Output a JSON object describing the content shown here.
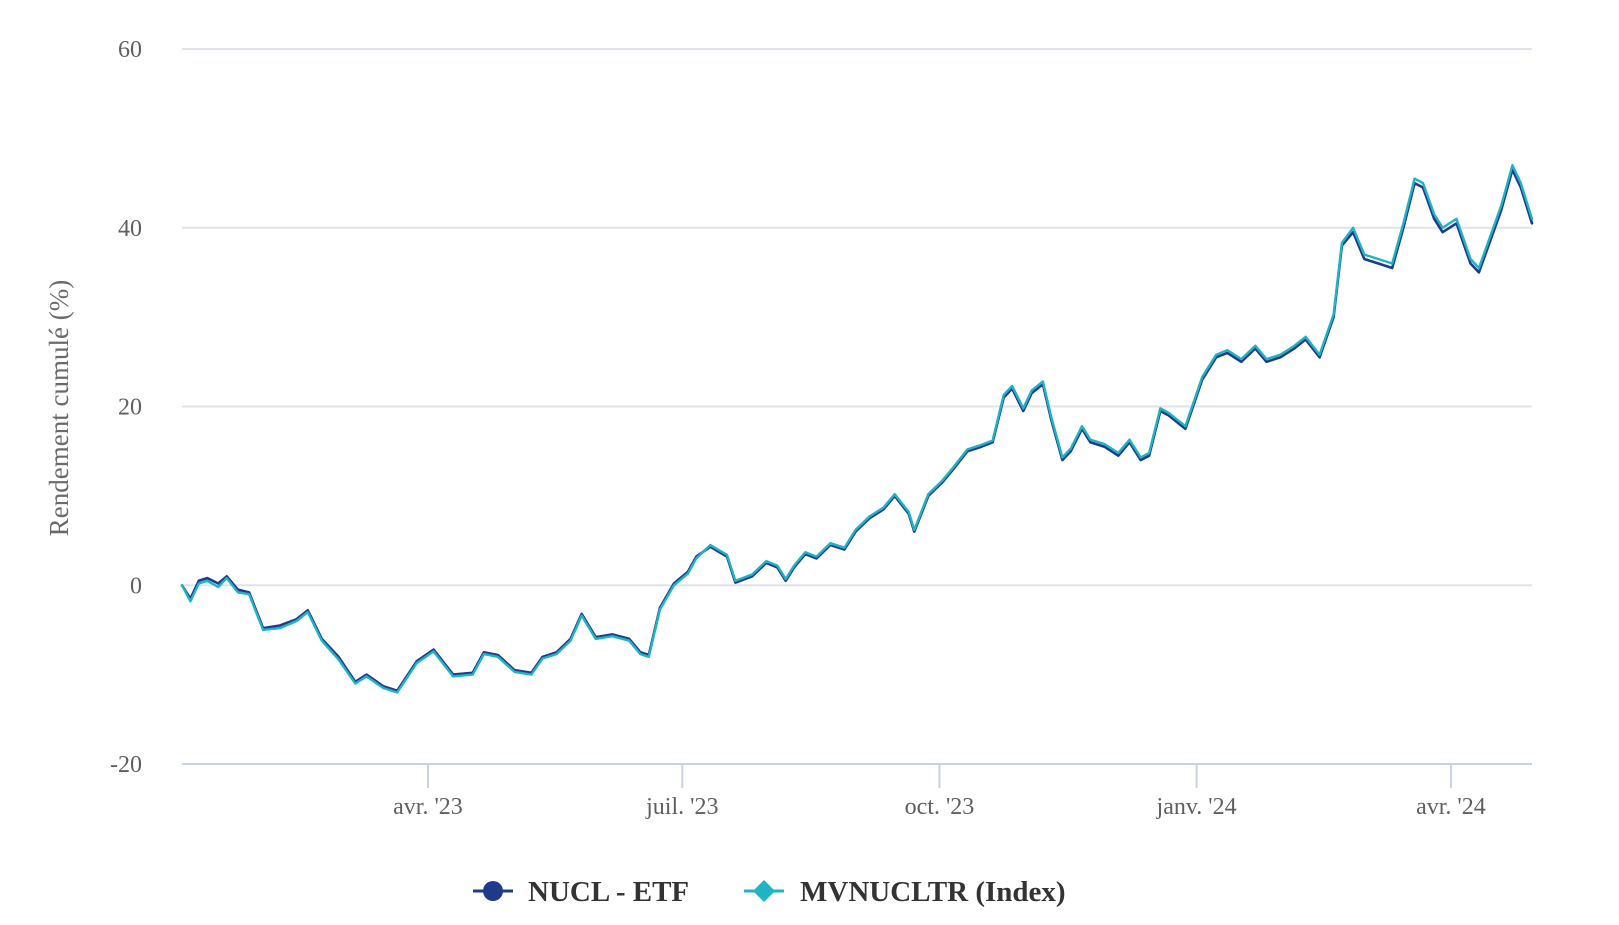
{
  "chart_data": {
    "type": "line",
    "title": "",
    "xlabel": "",
    "ylabel": "Rendement cumulé (%)",
    "ylim": [
      -20,
      60
    ],
    "yticks": [
      -20,
      0,
      20,
      40,
      60
    ],
    "xlim": [
      "2023-01-03",
      "2024-04-30"
    ],
    "xticks": [
      {
        "date": "2023-04-01",
        "label": "avr. '23"
      },
      {
        "date": "2023-07-01",
        "label": "juil. '23"
      },
      {
        "date": "2023-10-01",
        "label": "oct. '23"
      },
      {
        "date": "2024-01-01",
        "label": "janv. '24"
      },
      {
        "date": "2024-04-01",
        "label": "avr. '24"
      }
    ],
    "grid": true,
    "legend_position": "bottom-center",
    "series": [
      {
        "name": "NUCL - ETF",
        "color": "#1f3a8a",
        "marker": "circle",
        "points": [
          [
            "2023-01-03",
            0.0
          ],
          [
            "2023-01-06",
            -1.5
          ],
          [
            "2023-01-09",
            0.5
          ],
          [
            "2023-01-12",
            0.8
          ],
          [
            "2023-01-16",
            0.2
          ],
          [
            "2023-01-19",
            1.0
          ],
          [
            "2023-01-23",
            -0.5
          ],
          [
            "2023-01-27",
            -0.8
          ],
          [
            "2023-02-01",
            -4.8
          ],
          [
            "2023-02-07",
            -4.5
          ],
          [
            "2023-02-13",
            -3.8
          ],
          [
            "2023-02-17",
            -2.8
          ],
          [
            "2023-02-22",
            -6.0
          ],
          [
            "2023-02-28",
            -8.0
          ],
          [
            "2023-03-06",
            -10.8
          ],
          [
            "2023-03-10",
            -10.0
          ],
          [
            "2023-03-16",
            -11.3
          ],
          [
            "2023-03-21",
            -11.8
          ],
          [
            "2023-03-28",
            -8.5
          ],
          [
            "2023-04-03",
            -7.2
          ],
          [
            "2023-04-10",
            -10.0
          ],
          [
            "2023-04-17",
            -9.8
          ],
          [
            "2023-04-21",
            -7.5
          ],
          [
            "2023-04-26",
            -7.8
          ],
          [
            "2023-05-02",
            -9.5
          ],
          [
            "2023-05-08",
            -9.8
          ],
          [
            "2023-05-12",
            -8.0
          ],
          [
            "2023-05-17",
            -7.5
          ],
          [
            "2023-05-22",
            -6.0
          ],
          [
            "2023-05-26",
            -3.2
          ],
          [
            "2023-05-31",
            -5.8
          ],
          [
            "2023-06-06",
            -5.5
          ],
          [
            "2023-06-12",
            -6.0
          ],
          [
            "2023-06-16",
            -7.5
          ],
          [
            "2023-06-19",
            -7.8
          ],
          [
            "2023-06-23",
            -2.5
          ],
          [
            "2023-06-28",
            0.2
          ],
          [
            "2023-07-03",
            1.5
          ],
          [
            "2023-07-06",
            3.2
          ],
          [
            "2023-07-11",
            4.3
          ],
          [
            "2023-07-17",
            3.2
          ],
          [
            "2023-07-20",
            0.3
          ],
          [
            "2023-07-26",
            1.0
          ],
          [
            "2023-07-31",
            2.5
          ],
          [
            "2023-08-04",
            2.0
          ],
          [
            "2023-08-07",
            0.5
          ],
          [
            "2023-08-10",
            2.0
          ],
          [
            "2023-08-14",
            3.5
          ],
          [
            "2023-08-18",
            3.0
          ],
          [
            "2023-08-23",
            4.5
          ],
          [
            "2023-08-28",
            4.0
          ],
          [
            "2023-09-01",
            6.0
          ],
          [
            "2023-09-06",
            7.5
          ],
          [
            "2023-09-11",
            8.5
          ],
          [
            "2023-09-15",
            10.0
          ],
          [
            "2023-09-20",
            8.0
          ],
          [
            "2023-09-22",
            6.0
          ],
          [
            "2023-09-27",
            10.0
          ],
          [
            "2023-10-02",
            11.5
          ],
          [
            "2023-10-06",
            13.0
          ],
          [
            "2023-10-11",
            15.0
          ],
          [
            "2023-10-16",
            15.5
          ],
          [
            "2023-10-20",
            16.0
          ],
          [
            "2023-10-24",
            21.0
          ],
          [
            "2023-10-27",
            22.0
          ],
          [
            "2023-10-31",
            19.5
          ],
          [
            "2023-11-03",
            21.5
          ],
          [
            "2023-11-07",
            22.5
          ],
          [
            "2023-11-10",
            18.5
          ],
          [
            "2023-11-14",
            14.0
          ],
          [
            "2023-11-17",
            15.0
          ],
          [
            "2023-11-21",
            17.5
          ],
          [
            "2023-11-24",
            16.0
          ],
          [
            "2023-11-29",
            15.5
          ],
          [
            "2023-12-04",
            14.5
          ],
          [
            "2023-12-08",
            16.0
          ],
          [
            "2023-12-12",
            14.0
          ],
          [
            "2023-12-15",
            14.5
          ],
          [
            "2023-12-19",
            19.5
          ],
          [
            "2023-12-22",
            19.0
          ],
          [
            "2023-12-28",
            17.5
          ],
          [
            "2024-01-03",
            23.0
          ],
          [
            "2024-01-08",
            25.5
          ],
          [
            "2024-01-12",
            26.0
          ],
          [
            "2024-01-17",
            25.0
          ],
          [
            "2024-01-22",
            26.5
          ],
          [
            "2024-01-26",
            25.0
          ],
          [
            "2024-01-31",
            25.5
          ],
          [
            "2024-02-05",
            26.5
          ],
          [
            "2024-02-09",
            27.5
          ],
          [
            "2024-02-14",
            25.5
          ],
          [
            "2024-02-19",
            30.0
          ],
          [
            "2024-02-22",
            38.0
          ],
          [
            "2024-02-26",
            39.5
          ],
          [
            "2024-03-01",
            36.5
          ],
          [
            "2024-03-06",
            36.0
          ],
          [
            "2024-03-11",
            35.5
          ],
          [
            "2024-03-15",
            40.0
          ],
          [
            "2024-03-19",
            45.0
          ],
          [
            "2024-03-22",
            44.5
          ],
          [
            "2024-03-26",
            41.0
          ],
          [
            "2024-03-29",
            39.5
          ],
          [
            "2024-04-03",
            40.5
          ],
          [
            "2024-04-08",
            36.0
          ],
          [
            "2024-04-11",
            35.0
          ],
          [
            "2024-04-15",
            38.5
          ],
          [
            "2024-04-19",
            42.0
          ],
          [
            "2024-04-23",
            46.5
          ],
          [
            "2024-04-26",
            44.5
          ],
          [
            "2024-04-30",
            40.5
          ]
        ]
      },
      {
        "name": "MVNUCLTR (Index)",
        "color": "#1fb3c4",
        "marker": "diamond",
        "points": [
          [
            "2023-01-03",
            0.0
          ],
          [
            "2023-01-06",
            -1.8
          ],
          [
            "2023-01-09",
            0.2
          ],
          [
            "2023-01-12",
            0.5
          ],
          [
            "2023-01-16",
            -0.2
          ],
          [
            "2023-01-19",
            0.8
          ],
          [
            "2023-01-23",
            -0.8
          ],
          [
            "2023-01-27",
            -1.0
          ],
          [
            "2023-02-01",
            -5.0
          ],
          [
            "2023-02-07",
            -4.8
          ],
          [
            "2023-02-13",
            -4.0
          ],
          [
            "2023-02-17",
            -3.0
          ],
          [
            "2023-02-22",
            -6.2
          ],
          [
            "2023-02-28",
            -8.3
          ],
          [
            "2023-03-06",
            -11.0
          ],
          [
            "2023-03-10",
            -10.2
          ],
          [
            "2023-03-16",
            -11.5
          ],
          [
            "2023-03-21",
            -12.0
          ],
          [
            "2023-03-28",
            -8.7
          ],
          [
            "2023-04-03",
            -7.4
          ],
          [
            "2023-04-10",
            -10.2
          ],
          [
            "2023-04-17",
            -10.0
          ],
          [
            "2023-04-21",
            -7.7
          ],
          [
            "2023-04-26",
            -8.0
          ],
          [
            "2023-05-02",
            -9.7
          ],
          [
            "2023-05-08",
            -10.0
          ],
          [
            "2023-05-12",
            -8.2
          ],
          [
            "2023-05-17",
            -7.7
          ],
          [
            "2023-05-22",
            -6.2
          ],
          [
            "2023-05-26",
            -3.4
          ],
          [
            "2023-05-31",
            -6.0
          ],
          [
            "2023-06-06",
            -5.7
          ],
          [
            "2023-06-12",
            -6.2
          ],
          [
            "2023-06-16",
            -7.7
          ],
          [
            "2023-06-19",
            -8.0
          ],
          [
            "2023-06-23",
            -2.7
          ],
          [
            "2023-06-28",
            0.0
          ],
          [
            "2023-07-03",
            1.3
          ],
          [
            "2023-07-06",
            3.0
          ],
          [
            "2023-07-11",
            4.5
          ],
          [
            "2023-07-17",
            3.4
          ],
          [
            "2023-07-20",
            0.5
          ],
          [
            "2023-07-26",
            1.2
          ],
          [
            "2023-07-31",
            2.7
          ],
          [
            "2023-08-04",
            2.2
          ],
          [
            "2023-08-07",
            0.7
          ],
          [
            "2023-08-10",
            2.2
          ],
          [
            "2023-08-14",
            3.7
          ],
          [
            "2023-08-18",
            3.2
          ],
          [
            "2023-08-23",
            4.7
          ],
          [
            "2023-08-28",
            4.2
          ],
          [
            "2023-09-01",
            6.2
          ],
          [
            "2023-09-06",
            7.7
          ],
          [
            "2023-09-11",
            8.7
          ],
          [
            "2023-09-15",
            10.2
          ],
          [
            "2023-09-20",
            8.2
          ],
          [
            "2023-09-22",
            6.2
          ],
          [
            "2023-09-27",
            10.2
          ],
          [
            "2023-10-02",
            11.7
          ],
          [
            "2023-10-06",
            13.2
          ],
          [
            "2023-10-11",
            15.2
          ],
          [
            "2023-10-16",
            15.7
          ],
          [
            "2023-10-20",
            16.2
          ],
          [
            "2023-10-24",
            21.3
          ],
          [
            "2023-10-27",
            22.3
          ],
          [
            "2023-10-31",
            19.8
          ],
          [
            "2023-11-03",
            21.8
          ],
          [
            "2023-11-07",
            22.8
          ],
          [
            "2023-11-10",
            18.8
          ],
          [
            "2023-11-14",
            14.3
          ],
          [
            "2023-11-17",
            15.3
          ],
          [
            "2023-11-21",
            17.8
          ],
          [
            "2023-11-24",
            16.3
          ],
          [
            "2023-11-29",
            15.8
          ],
          [
            "2023-12-04",
            14.8
          ],
          [
            "2023-12-08",
            16.3
          ],
          [
            "2023-12-12",
            14.3
          ],
          [
            "2023-12-15",
            14.8
          ],
          [
            "2023-12-19",
            19.8
          ],
          [
            "2023-12-22",
            19.3
          ],
          [
            "2023-12-28",
            17.8
          ],
          [
            "2024-01-03",
            23.3
          ],
          [
            "2024-01-08",
            25.8
          ],
          [
            "2024-01-12",
            26.3
          ],
          [
            "2024-01-17",
            25.3
          ],
          [
            "2024-01-22",
            26.8
          ],
          [
            "2024-01-26",
            25.3
          ],
          [
            "2024-01-31",
            25.8
          ],
          [
            "2024-02-05",
            26.8
          ],
          [
            "2024-02-09",
            27.8
          ],
          [
            "2024-02-14",
            25.8
          ],
          [
            "2024-02-19",
            30.3
          ],
          [
            "2024-02-22",
            38.3
          ],
          [
            "2024-02-26",
            40.0
          ],
          [
            "2024-03-01",
            37.0
          ],
          [
            "2024-03-06",
            36.5
          ],
          [
            "2024-03-11",
            36.0
          ],
          [
            "2024-03-15",
            40.5
          ],
          [
            "2024-03-19",
            45.5
          ],
          [
            "2024-03-22",
            45.0
          ],
          [
            "2024-03-26",
            41.5
          ],
          [
            "2024-03-29",
            40.0
          ],
          [
            "2024-04-03",
            41.0
          ],
          [
            "2024-04-08",
            36.5
          ],
          [
            "2024-04-11",
            35.5
          ],
          [
            "2024-04-15",
            39.0
          ],
          [
            "2024-04-19",
            42.5
          ],
          [
            "2024-04-23",
            47.0
          ],
          [
            "2024-04-26",
            45.0
          ],
          [
            "2024-04-30",
            41.0
          ]
        ]
      }
    ]
  }
}
